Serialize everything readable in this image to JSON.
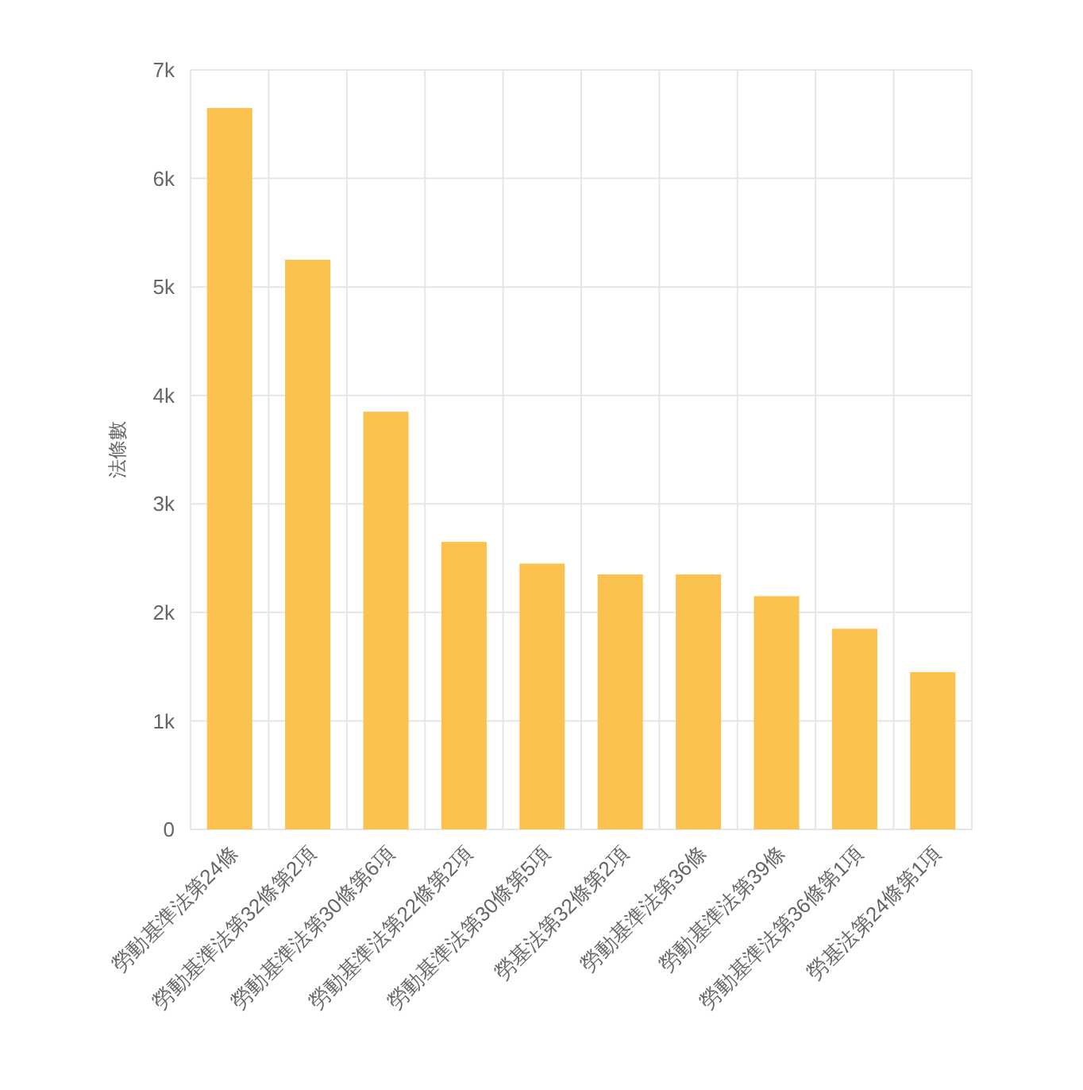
{
  "chart_data": {
    "type": "bar",
    "ylabel": "法條數",
    "categories": [
      "勞動基準法第24條",
      "勞動基準法第32條第2項",
      "勞動基準法第30條第6項",
      "勞動基準法第22條第2項",
      "勞動基準法第30條第5項",
      "勞基法第32條第2項",
      "勞動基準法第36條",
      "勞動基準法第39條",
      "勞動基準法第36條第1項",
      "勞基法第24條第1項"
    ],
    "values": [
      6650,
      5250,
      3850,
      2650,
      2450,
      2350,
      2350,
      2150,
      1850,
      1450
    ],
    "color": "#fcc24f",
    "ylim": [
      0,
      7000
    ],
    "yticks": [
      0,
      {
        "value": 1000,
        "label": "1k"
      },
      {
        "value": 2000,
        "label": "2k"
      },
      {
        "value": 3000,
        "label": "3k"
      },
      {
        "value": 4000,
        "label": "4k"
      },
      {
        "value": 5000,
        "label": "5k"
      },
      {
        "value": 6000,
        "label": "6k"
      },
      {
        "value": 7000,
        "label": "7k"
      }
    ],
    "grid": true
  }
}
